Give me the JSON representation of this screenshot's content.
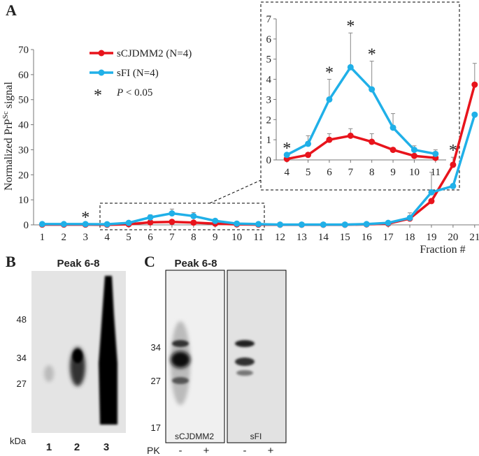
{
  "chart_data": {
    "type": "line",
    "panel_label": "A",
    "ylabel": {
      "before": "Normalized PrP",
      "sup": "Sc",
      "after": " signal"
    },
    "xlabel": "Fraction #",
    "x": [
      1,
      2,
      3,
      4,
      5,
      6,
      7,
      8,
      9,
      10,
      11,
      12,
      13,
      14,
      15,
      16,
      17,
      18,
      19,
      20,
      21
    ],
    "xlim": [
      0.6,
      21.2
    ],
    "xticks": [
      1,
      2,
      3,
      4,
      5,
      6,
      7,
      8,
      9,
      10,
      11,
      12,
      13,
      14,
      15,
      16,
      17,
      18,
      19,
      20,
      21
    ],
    "ylim": [
      0,
      70
    ],
    "yticks": [
      0,
      10,
      20,
      30,
      40,
      50,
      60,
      70
    ],
    "series": [
      {
        "name": "sCJDMM2 (N=4)",
        "color": "#e8141c",
        "values": [
          0.1,
          0.1,
          0.1,
          0.05,
          0.25,
          1.0,
          1.2,
          0.9,
          0.5,
          0.2,
          0.1,
          0.05,
          0.05,
          0.05,
          0.05,
          0.2,
          0.5,
          2.5,
          9.5,
          24,
          56
        ],
        "errors": [
          null,
          null,
          null,
          null,
          null,
          0.3,
          0.35,
          0.4,
          0.1,
          null,
          null,
          null,
          null,
          null,
          null,
          null,
          0.5,
          1,
          null,
          3,
          8.5
        ]
      },
      {
        "name": "sFI (N=4)",
        "color": "#20b0e8",
        "values": [
          0.3,
          0.3,
          0.3,
          0.25,
          0.8,
          3.0,
          4.6,
          3.5,
          1.6,
          0.5,
          0.3,
          0.1,
          0.1,
          0.1,
          0.1,
          0.3,
          0.8,
          2.8,
          13,
          15.5,
          44
        ],
        "errors": [
          null,
          null,
          null,
          null,
          0.4,
          1.0,
          1.7,
          1.4,
          0.7,
          0.2,
          0.2,
          null,
          null,
          null,
          null,
          null,
          null,
          2,
          8,
          null,
          null
        ]
      }
    ],
    "asterisk": "*",
    "legend_note": {
      "var": "P",
      "text": " < 0.05"
    },
    "significant_x": [
      3,
      20
    ],
    "inset": {
      "xlim": [
        3.5,
        11.5
      ],
      "xticks": [
        4,
        5,
        6,
        7,
        8,
        9,
        10,
        11
      ],
      "ylim": [
        0,
        7
      ],
      "yticks": [
        0,
        1,
        2,
        3,
        4,
        5,
        6,
        7
      ],
      "significant_x": [
        4,
        6,
        7,
        8
      ]
    }
  },
  "blots": {
    "panel_b": {
      "label": "B",
      "title": "Peak 6-8",
      "markers": [
        "48",
        "34",
        "27"
      ],
      "unit": "kDa",
      "lanes": [
        "1",
        "2",
        "3"
      ]
    },
    "panel_c": {
      "label": "C",
      "title": "Peak 6-8",
      "markers": [
        "34",
        "27",
        "17"
      ],
      "samples": [
        "sCJDMM2",
        "sFI"
      ],
      "pk_label": "PK",
      "pk_signs": [
        "-",
        "+",
        "-",
        "+"
      ]
    }
  }
}
